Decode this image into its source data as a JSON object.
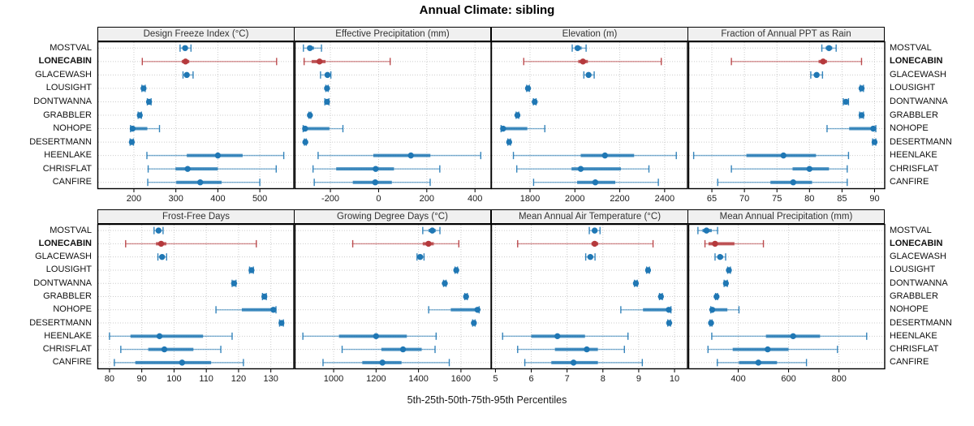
{
  "title": "Annual Climate: sibling",
  "footer": "5th-25th-50th-75th-95th Percentiles",
  "colors": {
    "series_blue": "#1f77b4",
    "highlight_red": "#b5393c",
    "grid": "#cccccc",
    "panel_header_bg": "#f0f0f0",
    "border": "#000000"
  },
  "chart_data": {
    "type": "dot-interval",
    "title": "Annual Climate: sibling",
    "xlabel": "5th-25th-50th-75th-95th Percentiles",
    "percentiles": [
      5,
      25,
      50,
      75,
      95
    ],
    "stations": [
      "MOSTVAL",
      "LONECABIN",
      "GLACEWASH",
      "LOUSIGHT",
      "DONTWANNA",
      "GRABBLER",
      "NOHOPE",
      "DESERTMANN",
      "HEENLAKE",
      "CHRISFLAT",
      "CANFIRE"
    ],
    "highlight_station": "LONECABIN",
    "panels": [
      {
        "title": "Design Freeze Index (°C)",
        "xlim": [
          115,
          580
        ],
        "xticks": [
          200,
          300,
          400,
          500
        ],
        "values": [
          [
            310,
            317,
            322,
            328,
            336
          ],
          [
            220,
            314,
            323,
            332,
            540
          ],
          [
            317,
            322,
            326,
            331,
            341
          ],
          [
            219,
            221,
            223,
            225,
            227
          ],
          [
            232,
            234,
            236,
            238,
            241
          ],
          [
            210,
            212,
            214,
            216,
            218
          ],
          [
            192,
            194,
            197,
            232,
            261
          ],
          [
            191,
            193,
            195,
            197,
            199
          ],
          [
            231,
            326,
            400,
            459,
            557
          ],
          [
            234,
            299,
            328,
            400,
            539
          ],
          [
            233,
            301,
            358,
            409,
            500
          ]
        ]
      },
      {
        "title": "Effective Precipitation (mm)",
        "xlim": [
          -345,
          465
        ],
        "xticks": [
          -200,
          0,
          200,
          400
        ],
        "values": [
          [
            -312,
            -296,
            -285,
            -268,
            -237
          ],
          [
            -309,
            -278,
            -245,
            -220,
            48
          ],
          [
            -241,
            -222,
            -212,
            -205,
            -198
          ],
          [
            -219,
            -216,
            -214,
            -212,
            -209
          ],
          [
            -223,
            -218,
            -214,
            -210,
            -206
          ],
          [
            -289,
            -287,
            -285,
            -283,
            -281
          ],
          [
            -313,
            -309,
            -305,
            -204,
            -148
          ],
          [
            -308,
            -306,
            -304,
            -302,
            -300
          ],
          [
            -251,
            -22,
            134,
            215,
            424
          ],
          [
            -272,
            -176,
            -12,
            64,
            254
          ],
          [
            -267,
            -107,
            -14,
            55,
            214
          ]
        ]
      },
      {
        "title": "Elevation (m)",
        "xlim": [
          1630,
          2500
        ],
        "xticks": [
          1800,
          2000,
          2200,
          2400
        ],
        "values": [
          [
            1988,
            2002,
            2012,
            2030,
            2050
          ],
          [
            1772,
            2015,
            2036,
            2058,
            2385
          ],
          [
            2040,
            2052,
            2061,
            2071,
            2086
          ],
          [
            1785,
            1788,
            1791,
            1794,
            1797
          ],
          [
            1815,
            1818,
            1821,
            1824,
            1827
          ],
          [
            1738,
            1741,
            1744,
            1747,
            1750
          ],
          [
            1671,
            1675,
            1680,
            1788,
            1866
          ],
          [
            1701,
            1704,
            1707,
            1710,
            1713
          ],
          [
            1726,
            2026,
            2134,
            2264,
            2452
          ],
          [
            1741,
            1985,
            2026,
            2205,
            2330
          ],
          [
            1816,
            2010,
            2091,
            2180,
            2372
          ]
        ]
      },
      {
        "title": "Fraction of Annual PPT as Rain",
        "xlim": [
          61.5,
          91.5
        ],
        "xticks": [
          65,
          70,
          75,
          80,
          85,
          90
        ],
        "values": [
          [
            81.9,
            82.5,
            83.0,
            83.5,
            84.1
          ],
          [
            68.0,
            81.4,
            82.1,
            82.7,
            88.0
          ],
          [
            80.2,
            80.7,
            81.1,
            81.5,
            82.0
          ],
          [
            87.8,
            87.9,
            88.0,
            88.1,
            88.3
          ],
          [
            85.2,
            85.4,
            85.6,
            85.8,
            86.0
          ],
          [
            87.7,
            87.9,
            88.0,
            88.2,
            88.3
          ],
          [
            82.7,
            86.1,
            89.8,
            90.0,
            90.2
          ],
          [
            89.7,
            89.8,
            90.0,
            90.1,
            90.2
          ],
          [
            62.2,
            70.3,
            76.0,
            81.0,
            86.0
          ],
          [
            68.0,
            77.4,
            80.0,
            83.0,
            85.8
          ],
          [
            65.9,
            74.0,
            77.5,
            80.4,
            85.8
          ]
        ]
      },
      {
        "title": "Frost-Free Days",
        "xlim": [
          76.5,
          137
        ],
        "xticks": [
          80,
          90,
          100,
          110,
          120,
          130
        ],
        "values": [
          [
            93.8,
            94.6,
            95.2,
            95.9,
            96.6
          ],
          [
            85.0,
            94.4,
            96.0,
            97.6,
            125.5
          ],
          [
            95.0,
            95.7,
            96.3,
            97.0,
            97.7
          ],
          [
            123.4,
            123.7,
            124.0,
            124.3,
            124.6
          ],
          [
            118.0,
            118.3,
            118.6,
            118.9,
            119.2
          ],
          [
            127.4,
            127.7,
            128.0,
            128.3,
            128.6
          ],
          [
            113.0,
            121.0,
            130.8,
            131.2,
            131.6
          ],
          [
            132.7,
            133.0,
            133.3,
            133.6,
            133.9
          ],
          [
            80.0,
            86.5,
            95.5,
            109.0,
            118.0
          ],
          [
            83.5,
            92.0,
            97.0,
            106.0,
            114.5
          ],
          [
            81.5,
            88.0,
            102.5,
            111.5,
            121.5
          ]
        ]
      },
      {
        "title": "Growing Degree Days (°C)",
        "xlim": [
          820,
          1740
        ],
        "xticks": [
          1000,
          1200,
          1400,
          1600
        ],
        "values": [
          [
            1420,
            1447,
            1465,
            1481,
            1501
          ],
          [
            1090,
            1420,
            1447,
            1472,
            1590
          ],
          [
            1393,
            1402,
            1408,
            1416,
            1426
          ],
          [
            1572,
            1575,
            1578,
            1581,
            1584
          ],
          [
            1518,
            1521,
            1524,
            1527,
            1530
          ],
          [
            1618,
            1621,
            1624,
            1627,
            1630
          ],
          [
            1448,
            1552,
            1678,
            1682,
            1686
          ],
          [
            1655,
            1658,
            1661,
            1664,
            1667
          ],
          [
            855,
            1025,
            1200,
            1345,
            1483
          ],
          [
            1040,
            1225,
            1327,
            1415,
            1478
          ],
          [
            950,
            1135,
            1230,
            1320,
            1545
          ]
        ]
      },
      {
        "title": "Mean Annual Air Temperature (°C)",
        "xlim": [
          4.9,
          10.35
        ],
        "xticks": [
          5,
          6,
          7,
          8,
          9,
          10
        ],
        "values": [
          [
            7.62,
            7.7,
            7.77,
            7.84,
            7.92
          ],
          [
            5.62,
            7.68,
            7.77,
            7.87,
            9.4
          ],
          [
            7.52,
            7.59,
            7.65,
            7.71,
            7.78
          ],
          [
            9.22,
            9.24,
            9.26,
            9.28,
            9.3
          ],
          [
            8.88,
            8.9,
            8.92,
            8.94,
            8.96
          ],
          [
            9.58,
            9.6,
            9.62,
            9.64,
            9.66
          ],
          [
            8.5,
            9.12,
            9.84,
            9.87,
            9.9
          ],
          [
            9.81,
            9.83,
            9.85,
            9.87,
            9.89
          ],
          [
            5.2,
            6.0,
            6.73,
            7.5,
            8.7
          ],
          [
            5.62,
            6.66,
            7.55,
            7.86,
            8.6
          ],
          [
            5.82,
            6.56,
            7.18,
            7.86,
            9.1
          ]
        ]
      },
      {
        "title": "Mean Annual Precipitation (mm)",
        "xlim": [
          205,
          980
        ],
        "xticks": [
          400,
          600,
          800
        ],
        "values": [
          [
            240,
            258,
            274,
            295,
            318
          ],
          [
            268,
            282,
            308,
            385,
            500
          ],
          [
            308,
            318,
            328,
            340,
            350
          ],
          [
            358,
            361,
            363,
            366,
            369
          ],
          [
            344,
            348,
            351,
            354,
            357
          ],
          [
            310,
            312,
            314,
            316,
            318
          ],
          [
            291,
            294,
            297,
            357,
            403
          ],
          [
            288,
            290,
            292,
            294,
            296
          ],
          [
            295,
            510,
            618,
            725,
            910
          ],
          [
            280,
            378,
            517,
            600,
            794
          ],
          [
            317,
            403,
            480,
            554,
            671
          ]
        ]
      }
    ]
  }
}
